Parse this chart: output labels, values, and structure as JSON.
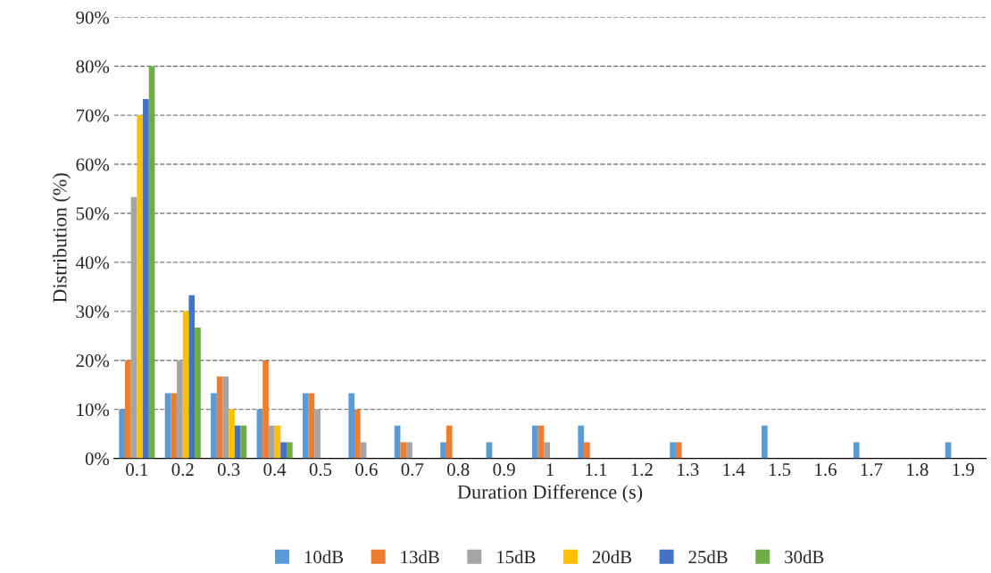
{
  "chart_data": {
    "type": "bar",
    "xlabel": "Duration Difference (s)",
    "ylabel": "Distribution (%)",
    "categories": [
      "0.1",
      "0.2",
      "0.3",
      "0.4",
      "0.5",
      "0.6",
      "0.7",
      "0.8",
      "0.9",
      "1",
      "1.1",
      "1.2",
      "1.3",
      "1.4",
      "1.5",
      "1.6",
      "1.7",
      "1.8",
      "1.9"
    ],
    "series": [
      {
        "name": "10dB",
        "color": "#5b9bd5",
        "values": [
          10,
          13.3,
          13.3,
          10,
          13.3,
          13.3,
          6.7,
          3.3,
          3.3,
          6.7,
          6.7,
          0,
          3.3,
          0,
          6.7,
          0,
          3.3,
          0,
          3.3
        ]
      },
      {
        "name": "13dB",
        "color": "#ed7d31",
        "values": [
          20,
          13.3,
          16.7,
          20,
          13.3,
          10,
          3.3,
          6.7,
          0,
          6.7,
          3.3,
          0,
          3.3,
          0,
          0,
          0,
          0,
          0,
          0
        ]
      },
      {
        "name": "15dB",
        "color": "#a5a5a5",
        "values": [
          53.3,
          20,
          16.7,
          6.7,
          10,
          3.3,
          3.3,
          0,
          0,
          3.3,
          0,
          0,
          0,
          0,
          0,
          0,
          0,
          0,
          0
        ]
      },
      {
        "name": "20dB",
        "color": "#ffc000",
        "values": [
          70,
          30,
          10,
          6.7,
          0,
          0,
          0,
          0,
          0,
          0,
          0,
          0,
          0,
          0,
          0,
          0,
          0,
          0,
          0
        ]
      },
      {
        "name": "25dB",
        "color": "#4472c4",
        "values": [
          73.3,
          33.3,
          6.7,
          3.3,
          0,
          0,
          0,
          0,
          0,
          0,
          0,
          0,
          0,
          0,
          0,
          0,
          0,
          0,
          0
        ]
      },
      {
        "name": "30dB",
        "color": "#70ad47",
        "values": [
          80,
          26.7,
          6.7,
          3.3,
          0,
          0,
          0,
          0,
          0,
          0,
          0,
          0,
          0,
          0,
          0,
          0,
          0,
          0,
          0
        ]
      }
    ],
    "ylim": [
      0,
      90
    ],
    "yticks": [
      {
        "value": 0,
        "label": "0%"
      },
      {
        "value": 10,
        "label": "10%"
      },
      {
        "value": 20,
        "label": "20%"
      },
      {
        "value": 30,
        "label": "30%"
      },
      {
        "value": 40,
        "label": "40%"
      },
      {
        "value": 50,
        "label": "50%"
      },
      {
        "value": 60,
        "label": "60%"
      },
      {
        "value": 70,
        "label": "70%"
      },
      {
        "value": 80,
        "label": "80%"
      },
      {
        "value": 90,
        "label": "90%"
      }
    ],
    "grid": "y",
    "legend": "bottom"
  }
}
